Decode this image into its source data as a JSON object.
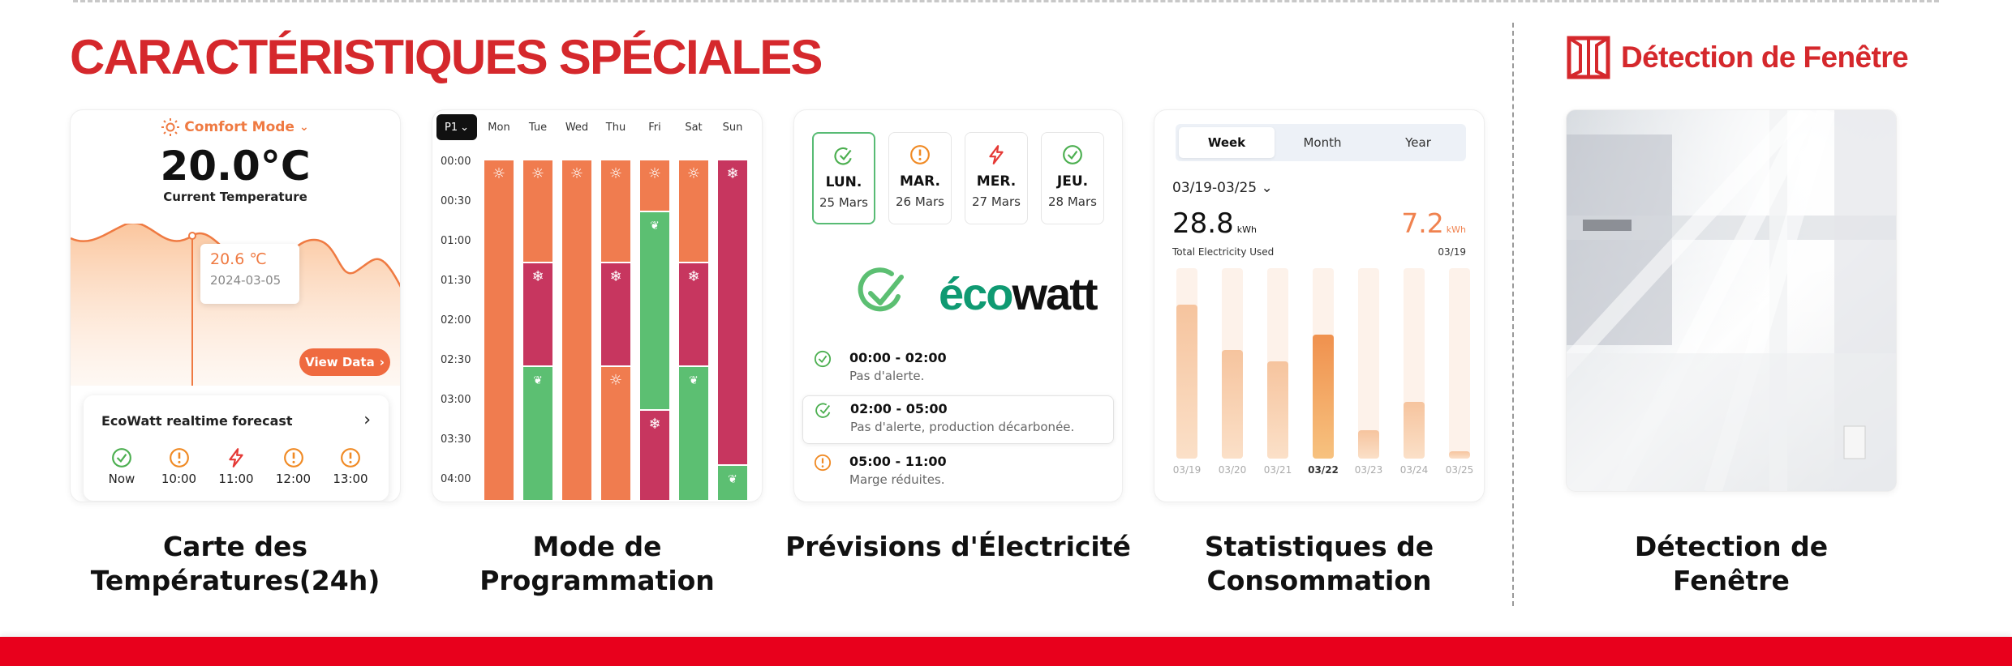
{
  "header": {
    "title": "CARACTÉRISTIQUES SPÉCIALES"
  },
  "window_detection": {
    "title": "Détection de Fenêtre",
    "caption_1": "Détection de",
    "caption_2": "Fenêtre"
  },
  "card1": {
    "mode": "Comfort Mode",
    "temperature": "20.0°C",
    "temperature_label": "Current Temperature",
    "tooltip_value": "20.6 ℃",
    "tooltip_date": "2024-03-05",
    "view_button": "View Data",
    "forecast_title": "EcoWatt realtime forecast",
    "forecast": [
      {
        "label": "Now",
        "icon": "check-circle-icon",
        "color": "#4caf50"
      },
      {
        "label": "10:00",
        "icon": "alert-circle-icon",
        "color": "#f08a24"
      },
      {
        "label": "11:00",
        "icon": "lightning-icon",
        "color": "#e53935"
      },
      {
        "label": "12:00",
        "icon": "alert-circle-icon",
        "color": "#f08a24"
      },
      {
        "label": "13:00",
        "icon": "alert-circle-icon",
        "color": "#f08a24"
      }
    ],
    "caption_1": "Carte des",
    "caption_2": "Températures(24h)"
  },
  "card2": {
    "program": "P1",
    "days": [
      "Mon",
      "Tue",
      "Wed",
      "Thu",
      "Fri",
      "Sat",
      "Sun"
    ],
    "times": [
      "00:00",
      "00:30",
      "01:00",
      "01:30",
      "02:00",
      "02:30",
      "03:00",
      "03:30",
      "04:00"
    ],
    "colors": {
      "comfort": "#f07c4f",
      "eco": "#5cbf72",
      "frost": "#c7365f"
    },
    "schedule": [
      [
        [
          "comfort",
          0,
          8.6
        ]
      ],
      [
        [
          "comfort",
          0,
          2.6
        ],
        [
          "frost",
          2.6,
          5.2
        ],
        [
          "eco",
          5.2,
          8.6
        ]
      ],
      [
        [
          "comfort",
          0,
          8.6
        ]
      ],
      [
        [
          "comfort",
          0,
          2.6
        ],
        [
          "frost",
          2.6,
          5.2
        ],
        [
          "comfort",
          5.2,
          8.6
        ]
      ],
      [
        [
          "comfort",
          0,
          1.3
        ],
        [
          "eco",
          1.3,
          6.3
        ],
        [
          "frost",
          6.3,
          8.6
        ]
      ],
      [
        [
          "comfort",
          0,
          2.6
        ],
        [
          "frost",
          2.6,
          5.2
        ],
        [
          "eco",
          5.2,
          8.6
        ]
      ],
      [
        [
          "frost",
          0,
          7.7
        ],
        [
          "eco",
          7.7,
          8.6
        ]
      ]
    ],
    "caption_1": "Mode de",
    "caption_2": "Programmation"
  },
  "card3": {
    "days": [
      {
        "name": "LUN.",
        "date": "25 Mars",
        "icon": "leaf-check-icon",
        "color": "#4caf50",
        "selected": true
      },
      {
        "name": "MAR.",
        "date": "26 Mars",
        "icon": "alert-circle-icon",
        "color": "#f08a24",
        "selected": false
      },
      {
        "name": "MER.",
        "date": "27 Mars",
        "icon": "lightning-icon",
        "color": "#e53935",
        "selected": false
      },
      {
        "name": "JEU.",
        "date": "28 Mars",
        "icon": "check-circle-icon",
        "color": "#4caf50",
        "selected": false
      }
    ],
    "logo": {
      "part1": "éco",
      "part2": "watt",
      "color1": "#0f9a72",
      "color2": "#111111"
    },
    "rows": [
      {
        "time": "00:00 - 02:00",
        "desc": "Pas d'alerte.",
        "icon": "check-circle-icon",
        "color": "#4caf50",
        "highlight": false
      },
      {
        "time": "02:00 - 05:00",
        "desc": "Pas d'alerte, production décarbonée.",
        "icon": "leaf-check-icon",
        "color": "#4caf50",
        "highlight": true
      },
      {
        "time": "05:00 - 11:00",
        "desc": "Marge réduites.",
        "icon": "alert-circle-icon",
        "color": "#f08a24",
        "highlight": false
      }
    ],
    "caption": "Prévisions d'Électricité"
  },
  "card4": {
    "tabs": [
      {
        "label": "Week",
        "active": true
      },
      {
        "label": "Month",
        "active": false
      },
      {
        "label": "Year",
        "active": false
      }
    ],
    "range": "03/19-03/25",
    "total": "28.8",
    "total_unit": "kWh",
    "total_label": "Total Electricity Used",
    "day_value": "7.2",
    "day_unit": "kWh",
    "day_label": "03/19",
    "bars": [
      {
        "label": "03/19",
        "value": 0.81,
        "active": false
      },
      {
        "label": "03/20",
        "value": 0.57,
        "active": false
      },
      {
        "label": "03/21",
        "value": 0.51,
        "active": false
      },
      {
        "label": "03/22",
        "value": 0.65,
        "active": true
      },
      {
        "label": "03/23",
        "value": 0.15,
        "active": false
      },
      {
        "label": "03/24",
        "value": 0.3,
        "active": false
      },
      {
        "label": "03/25",
        "value": 0.04,
        "active": false
      }
    ],
    "caption_1": "Statistiques de",
    "caption_2": "Consommation"
  }
}
